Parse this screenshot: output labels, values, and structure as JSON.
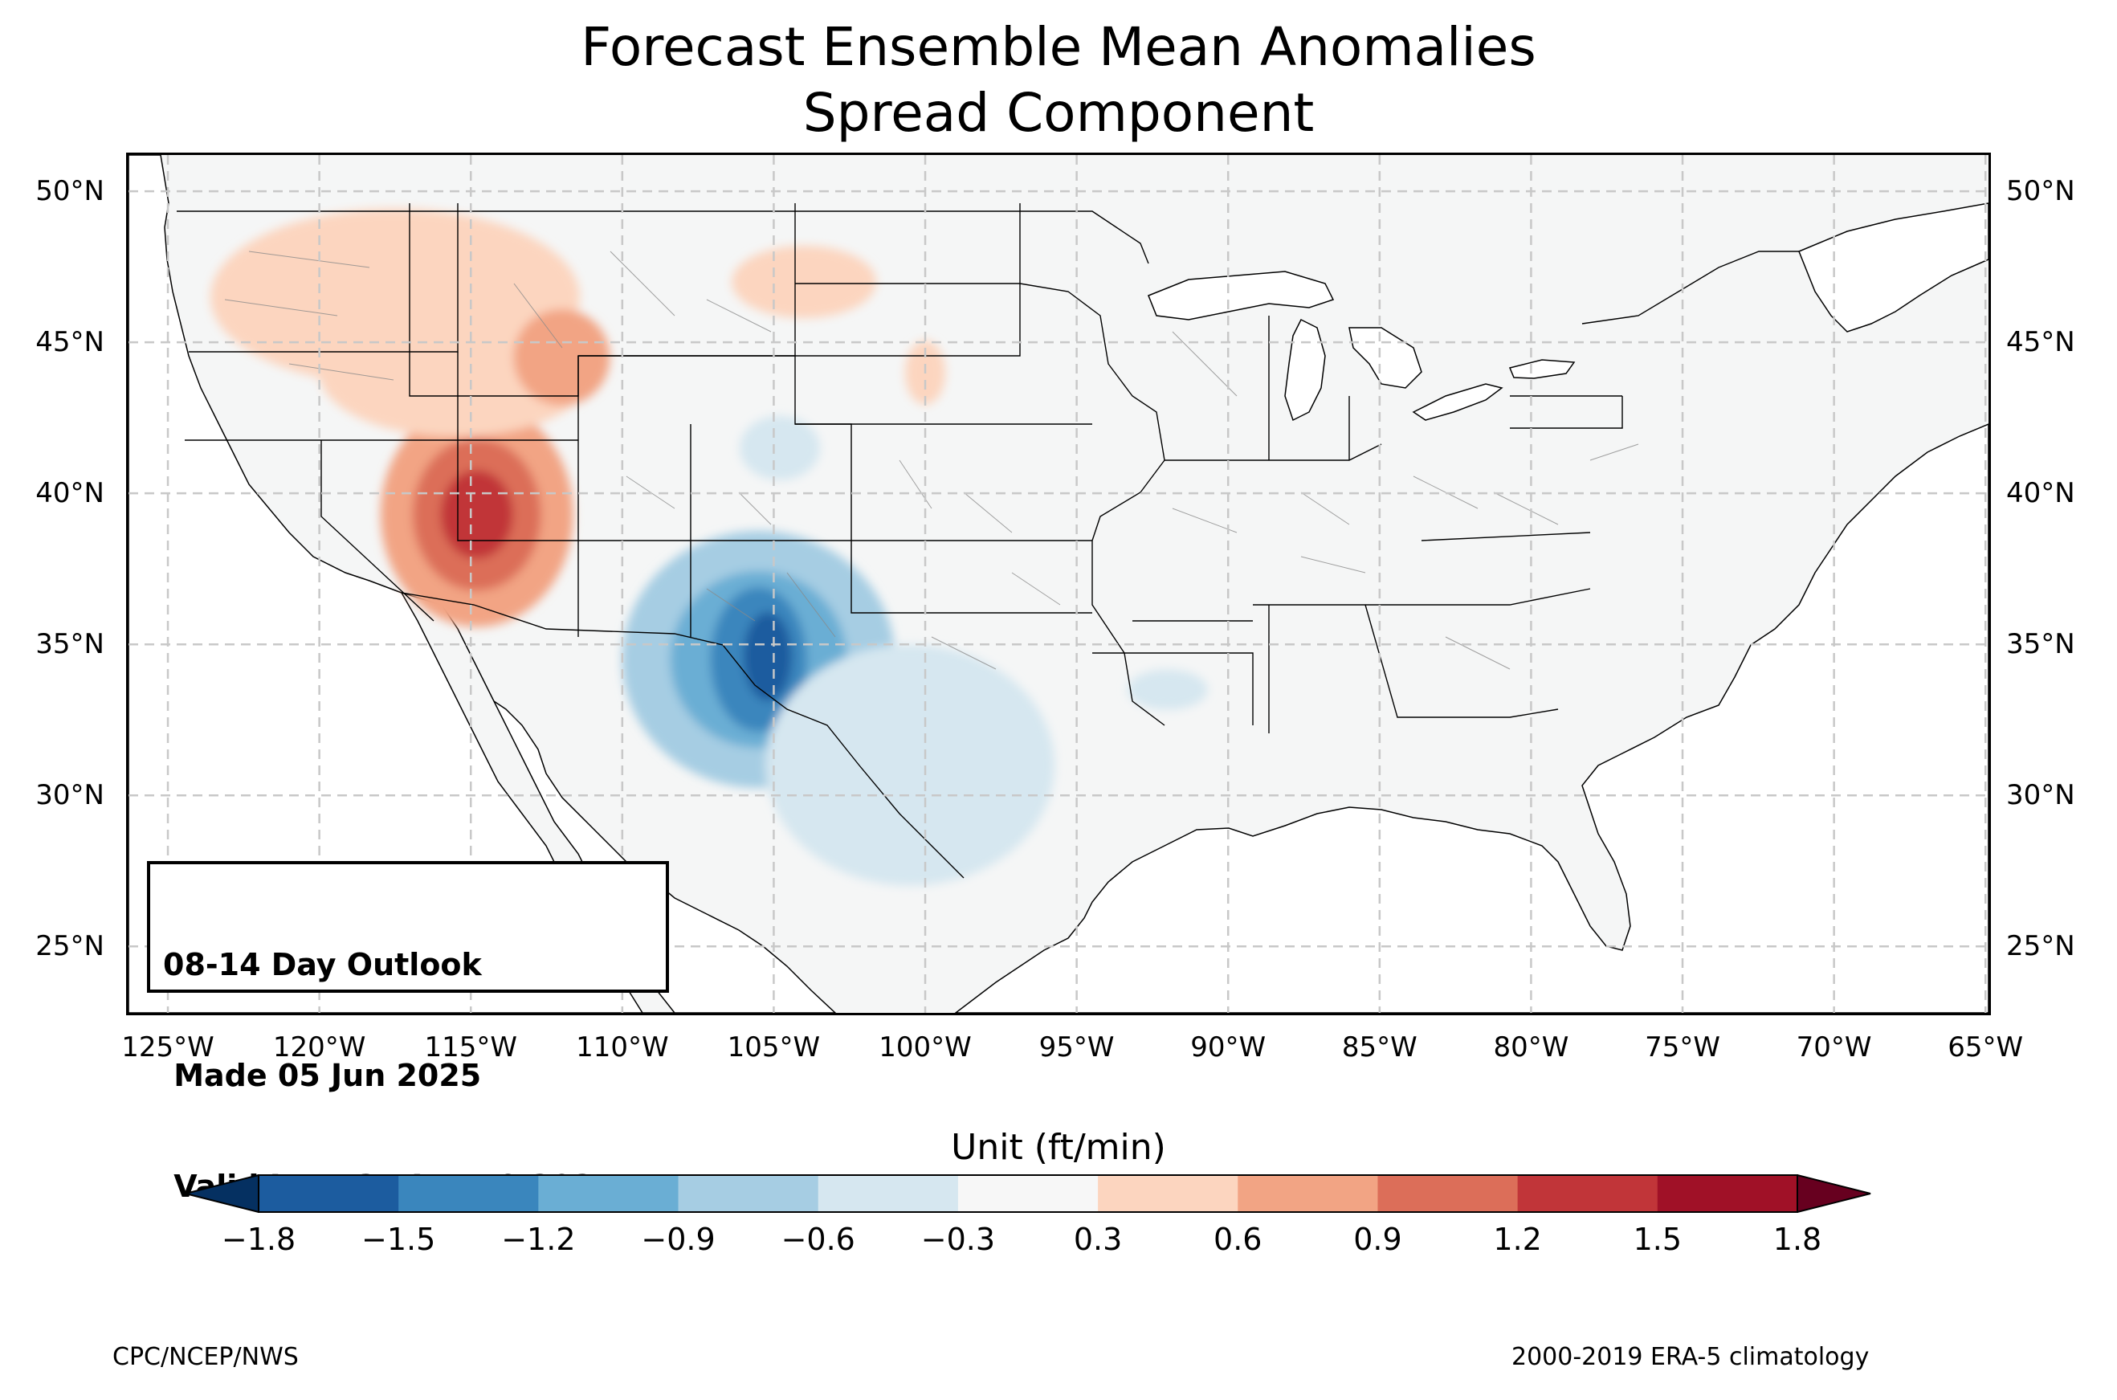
{
  "title": {
    "line1": "Forecast Ensemble Mean Anomalies",
    "line2": "Spread Component"
  },
  "map": {
    "projection": "PlateCarree",
    "extent": {
      "lon_min": -126.3,
      "lon_max": -64.9,
      "lat_min": 22.8,
      "lat_max": 51.2
    },
    "lat_ticks": [
      "50°N",
      "45°N",
      "40°N",
      "35°N",
      "30°N",
      "25°N"
    ],
    "lon_ticks": [
      "125°W",
      "120°W",
      "115°W",
      "110°W",
      "105°W",
      "100°W",
      "95°W",
      "90°W",
      "85°W",
      "80°W",
      "75°W",
      "70°W",
      "65°W"
    ],
    "gridlines": true,
    "gridline_style": "dashed",
    "land_color": "#f5f6f6",
    "border_color": "#000000"
  },
  "info_box": {
    "line1": "08-14 Day Outlook",
    "line2": " Made 05 Jun 2025",
    "line3": " Valid Jun 13 - Jun 19 2025"
  },
  "colorbar": {
    "label": "Unit (ft/min)",
    "tick_labels": [
      "−1.8",
      "−1.5",
      "−1.2",
      "−0.9",
      "−0.6",
      "−0.3",
      "0.3",
      "0.6",
      "0.9",
      "1.2",
      "1.5",
      "1.8"
    ],
    "extend": "both",
    "colors": [
      "#053061",
      "#1c5c9f",
      "#3a86bd",
      "#6aaed4",
      "#a6cde3",
      "#d6e7f0",
      "#f7f7f7",
      "#fcd5bf",
      "#f2a484",
      "#dc6e59",
      "#c13539",
      "#a01127",
      "#67001f"
    ]
  },
  "footer": {
    "left": "CPC/NCEP/NWS",
    "right": "2000-2019 ERA-5 climatology"
  },
  "anomaly_regions": [
    {
      "name": "Great Basin positive anomaly",
      "lon": -114.8,
      "lat": 39.3,
      "value": 1.5,
      "color": "#c13539"
    },
    {
      "name": "Northwest positive anomaly",
      "lon": -117.5,
      "lat": 46.5,
      "value": 0.6,
      "color": "#f2a484"
    },
    {
      "name": "Southern Rockies negative anomaly",
      "lon": -105.2,
      "lat": 34.5,
      "value": -1.5,
      "color": "#1c5c9f"
    },
    {
      "name": "Texas negative anomaly",
      "lon": -100.5,
      "lat": 31.0,
      "value": -0.6,
      "color": "#a6cde3"
    }
  ]
}
